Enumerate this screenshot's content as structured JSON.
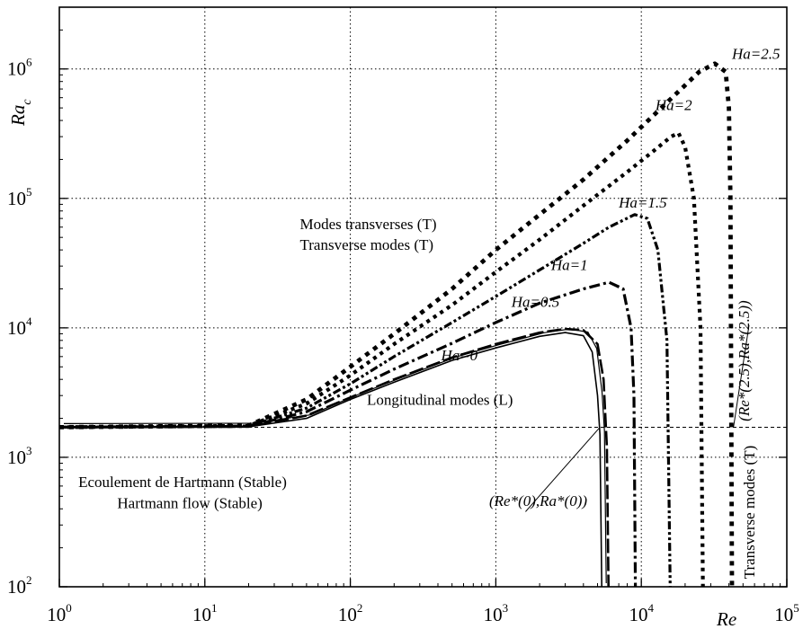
{
  "chart_data": {
    "type": "line",
    "title": "",
    "xlabel": "Re",
    "ylabel_base": "Ra",
    "ylabel_sub": "c",
    "x_scale": "log",
    "y_scale": "log",
    "xlim": [
      1,
      100000
    ],
    "ylim": [
      100,
      3000000
    ],
    "grid": true,
    "x_ticks": [
      {
        "value": 1,
        "base": "10",
        "exp": "0"
      },
      {
        "value": 10,
        "base": "10",
        "exp": "1"
      },
      {
        "value": 100,
        "base": "10",
        "exp": "2"
      },
      {
        "value": 1000,
        "base": "10",
        "exp": "3"
      },
      {
        "value": 10000,
        "base": "10",
        "exp": "4"
      },
      {
        "value": 100000,
        "base": "10",
        "exp": "5"
      }
    ],
    "y_ticks": [
      {
        "value": 100,
        "base": "10",
        "exp": "2"
      },
      {
        "value": 1000,
        "base": "10",
        "exp": "3"
      },
      {
        "value": 10000,
        "base": "10",
        "exp": "4"
      },
      {
        "value": 100000,
        "base": "10",
        "exp": "5"
      },
      {
        "value": 1000000,
        "base": "10",
        "exp": "6"
      }
    ],
    "longitudinal_level": 1708,
    "series": [
      {
        "name": "Ha=0",
        "style": "solid",
        "points": [
          [
            1,
            1708
          ],
          [
            20,
            1720
          ],
          [
            50,
            2000
          ],
          [
            100,
            2800
          ],
          [
            200,
            3800
          ],
          [
            500,
            5600
          ],
          [
            1000,
            7000
          ],
          [
            2000,
            8600
          ],
          [
            3000,
            9200
          ],
          [
            4000,
            8700
          ],
          [
            4600,
            6500
          ],
          [
            5000,
            3000
          ],
          [
            5200,
            1500
          ],
          [
            5350,
            100
          ]
        ]
      },
      {
        "name": "Ha=0.5",
        "style": "longdash",
        "points": [
          [
            1,
            1708
          ],
          [
            20,
            1725
          ],
          [
            50,
            2100
          ],
          [
            100,
            2900
          ],
          [
            200,
            4000
          ],
          [
            500,
            5900
          ],
          [
            1000,
            7500
          ],
          [
            2000,
            9200
          ],
          [
            3000,
            9800
          ],
          [
            4000,
            9600
          ],
          [
            5000,
            7500
          ],
          [
            5500,
            4000
          ],
          [
            5800,
            1200
          ],
          [
            5950,
            100
          ]
        ]
      },
      {
        "name": "Ha=1",
        "style": "dashdot",
        "points": [
          [
            1,
            1708
          ],
          [
            20,
            1735
          ],
          [
            50,
            2250
          ],
          [
            100,
            3300
          ],
          [
            200,
            4800
          ],
          [
            500,
            7600
          ],
          [
            1000,
            11000
          ],
          [
            2000,
            15500
          ],
          [
            4000,
            20000
          ],
          [
            6000,
            22500
          ],
          [
            7500,
            20000
          ],
          [
            8500,
            10000
          ],
          [
            8900,
            3000
          ],
          [
            9100,
            100
          ]
        ]
      },
      {
        "name": "Ha=1.5",
        "style": "dashdotdot",
        "points": [
          [
            1,
            1708
          ],
          [
            20,
            1745
          ],
          [
            50,
            2400
          ],
          [
            100,
            3700
          ],
          [
            200,
            6000
          ],
          [
            500,
            11000
          ],
          [
            1000,
            17500
          ],
          [
            2000,
            28000
          ],
          [
            4000,
            45000
          ],
          [
            6000,
            60000
          ],
          [
            9000,
            75000
          ],
          [
            11000,
            70000
          ],
          [
            13000,
            40000
          ],
          [
            15000,
            8000
          ],
          [
            15800,
            100
          ]
        ]
      },
      {
        "name": "Ha=2",
        "style": "dotted",
        "points": [
          [
            1,
            1708
          ],
          [
            20,
            1750
          ],
          [
            50,
            2600
          ],
          [
            100,
            4300
          ],
          [
            200,
            7500
          ],
          [
            500,
            15000
          ],
          [
            1000,
            27000
          ],
          [
            2000,
            48000
          ],
          [
            4000,
            88000
          ],
          [
            8000,
            160000
          ],
          [
            12000,
            230000
          ],
          [
            16000,
            300000
          ],
          [
            18000,
            320000
          ],
          [
            20000,
            250000
          ],
          [
            23000,
            100000
          ],
          [
            25500,
            10000
          ],
          [
            26500,
            100
          ]
        ]
      },
      {
        "name": "Ha=2.5",
        "style": "ovals",
        "points": [
          [
            1,
            1708
          ],
          [
            20,
            1760
          ],
          [
            50,
            2800
          ],
          [
            100,
            5000
          ],
          [
            200,
            9000
          ],
          [
            500,
            20000
          ],
          [
            1000,
            40000
          ],
          [
            2000,
            75000
          ],
          [
            4000,
            140000
          ],
          [
            8000,
            280000
          ],
          [
            15000,
            550000
          ],
          [
            25000,
            950000
          ],
          [
            32000,
            1100000
          ],
          [
            38000,
            950000
          ],
          [
            40000,
            500000
          ],
          [
            41000,
            100000
          ],
          [
            42000,
            100
          ]
        ]
      }
    ],
    "annotations": [
      {
        "id": "ha25",
        "text": "Ha=2.5",
        "italic": true,
        "x": 42000,
        "y": 1200000
      },
      {
        "id": "ha2",
        "text": "Ha=2",
        "italic": true,
        "x": 12500,
        "y": 480000
      },
      {
        "id": "ha15",
        "text": "Ha=1.5",
        "italic": true,
        "x": 7000,
        "y": 85000
      },
      {
        "id": "ha1",
        "text": "Ha=1",
        "italic": true,
        "x": 2400,
        "y": 28000
      },
      {
        "id": "ha05",
        "text": "Ha=0.5",
        "italic": true,
        "x": 1280,
        "y": 14500
      },
      {
        "id": "ha0",
        "text": "Ha=0",
        "italic": true,
        "x": 420,
        "y": 5600
      },
      {
        "id": "modes-fr",
        "text": "Modes transverses (T)",
        "italic": false,
        "x": 45,
        "y": 58000
      },
      {
        "id": "modes-en",
        "text": "Transverse modes (T)",
        "italic": false,
        "x": 45,
        "y": 40000
      },
      {
        "id": "long",
        "text": "Longitudinal modes (L)",
        "italic": false,
        "x": 130,
        "y": 2550
      },
      {
        "id": "hart-fr",
        "text": "Ecoulement de Hartmann (Stable)",
        "italic": false,
        "x": 1.35,
        "y": 590
      },
      {
        "id": "hart-en",
        "text": "Hartmann flow (Stable)",
        "italic": false,
        "x": 2.5,
        "y": 405
      },
      {
        "id": "re0",
        "text": "(Re*(0),Ra*(0))",
        "italic": true,
        "x": 900,
        "y": 420
      }
    ],
    "rotated_annotations": [
      {
        "id": "re25",
        "text": "(Re*(2.5),Ra*(2.5))",
        "italic": true,
        "x": 55000,
        "y": 1900
      },
      {
        "id": "tmodes",
        "text": "Transverse modes (T)",
        "italic": false,
        "x": 60000,
        "y": 115
      }
    ],
    "leader_lines": [
      {
        "from": [
          1600,
          380
        ],
        "to": [
          5200,
          1708
        ]
      },
      {
        "from": [
          55000,
          10500
        ],
        "to": [
          43000,
          1708
        ]
      }
    ]
  }
}
